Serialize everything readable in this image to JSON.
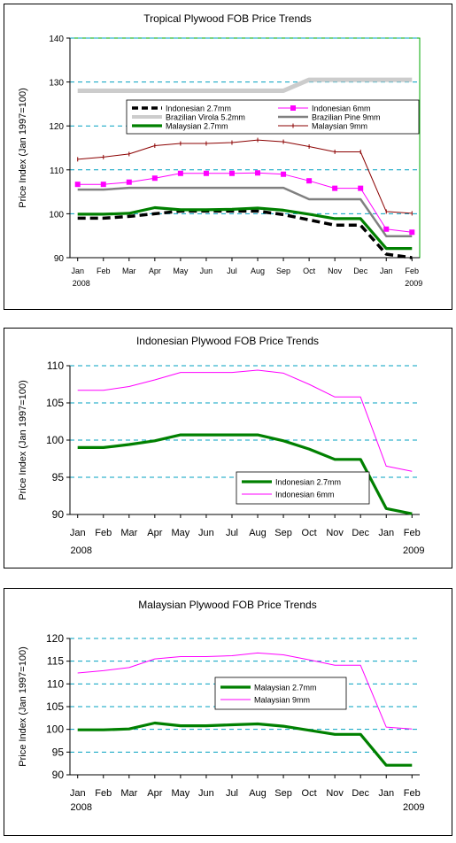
{
  "chart_data": [
    {
      "type": "line",
      "title": "Tropical Plywood FOB Price Trends",
      "ylabel": "Price Index (Jan 1997=100)",
      "categories": [
        "Jan",
        "Feb",
        "Mar",
        "Apr",
        "May",
        "Jun",
        "Jul",
        "Aug",
        "Sep",
        "Oct",
        "Nov",
        "Dec",
        "Jan",
        "Feb"
      ],
      "year_labels": {
        "start": "2008",
        "end": "2009"
      },
      "ylim": [
        90,
        140
      ],
      "yticks": [
        90,
        100,
        110,
        120,
        130,
        140
      ],
      "grid": "horizontal dashed",
      "legend_position": "inside upper-middle, two columns",
      "series": [
        {
          "name": "Indonesian 2.7mm",
          "color": "#000000",
          "style": "dashed-thick",
          "values": [
            99.0,
            99.0,
            99.4,
            100.0,
            100.6,
            100.6,
            100.6,
            100.6,
            99.8,
            98.6,
            97.4,
            97.4,
            90.8,
            90.0
          ]
        },
        {
          "name": "Indonesian 6mm",
          "color": "#ff00ff",
          "style": "square-markers",
          "values": [
            106.7,
            106.7,
            107.2,
            108.1,
            109.2,
            109.2,
            109.2,
            109.3,
            109.0,
            107.5,
            105.8,
            105.8,
            96.5,
            95.8
          ]
        },
        {
          "name": "Brazilian Virola 5.2mm",
          "color": "#cccccc",
          "style": "thick",
          "values": [
            128.0,
            128.0,
            128.0,
            128.0,
            128.0,
            128.0,
            128.0,
            128.0,
            128.0,
            130.5,
            130.5,
            130.5,
            130.5,
            130.5
          ]
        },
        {
          "name": "Brazilian Pine 9mm",
          "color": "#808080",
          "style": "solid",
          "values": [
            105.5,
            105.5,
            105.9,
            105.9,
            105.9,
            105.9,
            105.9,
            105.9,
            105.9,
            103.3,
            103.3,
            103.3,
            94.9,
            94.9
          ]
        },
        {
          "name": "Malaysian 2.7mm",
          "color": "#008000",
          "style": "thick",
          "values": [
            99.9,
            99.9,
            100.1,
            101.4,
            100.9,
            100.9,
            101.0,
            101.3,
            100.8,
            99.9,
            98.9,
            98.9,
            92.1,
            92.1
          ]
        },
        {
          "name": "Malaysian 9mm",
          "color": "#8b0000",
          "style": "tick-markers",
          "values": [
            112.4,
            112.9,
            113.6,
            115.5,
            116.0,
            116.0,
            116.2,
            116.8,
            116.4,
            115.3,
            114.1,
            114.1,
            100.5,
            100.1
          ]
        }
      ]
    },
    {
      "type": "line",
      "title": "Indonesian Plywood FOB Price Trends",
      "ylabel": "Price Index (Jan 1997=100)",
      "categories": [
        "Jan",
        "Feb",
        "Mar",
        "Apr",
        "May",
        "Jun",
        "Jul",
        "Aug",
        "Sep",
        "Oct",
        "Nov",
        "Dec",
        "Jan",
        "Feb"
      ],
      "year_labels": {
        "start": "2008",
        "end": "2009"
      },
      "ylim": [
        90,
        110
      ],
      "yticks": [
        90,
        95,
        100,
        105,
        110
      ],
      "grid": "horizontal dashed",
      "legend_position": "lower-right",
      "series": [
        {
          "name": "Indonesian 2.7mm",
          "color": "#008000",
          "style": "thick",
          "values": [
            99.0,
            99.0,
            99.4,
            99.9,
            100.7,
            100.7,
            100.7,
            100.7,
            99.9,
            98.8,
            97.4,
            97.4,
            90.8,
            90.1
          ]
        },
        {
          "name": "Indonesian 6mm",
          "color": "#ff00ff",
          "style": "solid",
          "values": [
            106.7,
            106.7,
            107.2,
            108.1,
            109.1,
            109.1,
            109.1,
            109.4,
            109.0,
            107.5,
            105.8,
            105.8,
            96.5,
            95.8
          ]
        }
      ]
    },
    {
      "type": "line",
      "title": "Malaysian Plywood FOB Price Trends",
      "ylabel": "Price Index (Jan 1997=100)",
      "categories": [
        "Jan",
        "Feb",
        "Mar",
        "Apr",
        "May",
        "Jun",
        "Jul",
        "Aug",
        "Sep",
        "Oct",
        "Nov",
        "Dec",
        "Jan",
        "Feb"
      ],
      "year_labels": {
        "start": "2008",
        "end": "2009"
      },
      "ylim": [
        90,
        120
      ],
      "yticks": [
        90,
        95,
        100,
        105,
        110,
        115,
        120
      ],
      "grid": "horizontal dashed",
      "legend_position": "middle-right",
      "series": [
        {
          "name": "Malaysian 2.7mm",
          "color": "#008000",
          "style": "thick",
          "values": [
            99.9,
            99.9,
            100.1,
            101.4,
            100.8,
            100.8,
            101.0,
            101.2,
            100.7,
            99.8,
            98.9,
            98.9,
            92.1,
            92.1
          ]
        },
        {
          "name": "Malaysian 9mm",
          "color": "#ff00ff",
          "style": "solid",
          "values": [
            112.4,
            112.9,
            113.6,
            115.5,
            116.0,
            116.0,
            116.2,
            116.8,
            116.4,
            115.3,
            114.1,
            114.1,
            100.5,
            100.1
          ]
        }
      ]
    }
  ]
}
